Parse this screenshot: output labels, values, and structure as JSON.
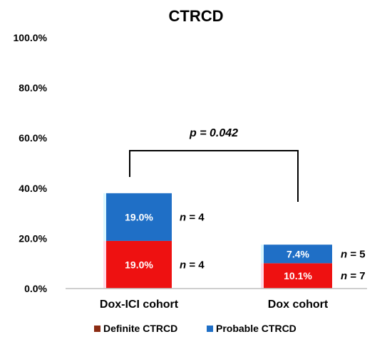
{
  "chart_data": {
    "type": "bar",
    "stacked": true,
    "title": "CTRCD",
    "categories": [
      "Dox-ICI cohort",
      "Dox cohort"
    ],
    "ylim": [
      0,
      100
    ],
    "yticks": [
      "0.0%",
      "20.0%",
      "40.0%",
      "60.0%",
      "80.0%",
      "100.0%"
    ],
    "grid": false,
    "legend_position": "bottom",
    "series": [
      {
        "name": "Definite CTRCD",
        "color": "#ee1111",
        "values": [
          19.0,
          10.1
        ],
        "labels": [
          "19.0%",
          "10.1%"
        ],
        "n_labels": [
          {
            "prefix": "n",
            "text": " = 4"
          },
          {
            "prefix": "n",
            "text": " = 7"
          }
        ]
      },
      {
        "name": "Probable CTRCD",
        "color": "#1f6fc6",
        "values": [
          19.0,
          7.4
        ],
        "labels": [
          "19.0%",
          "7.4%"
        ],
        "n_labels": [
          {
            "prefix": "n",
            "text": " = 4"
          },
          {
            "prefix": "n",
            "text": " = 5"
          }
        ]
      }
    ],
    "annotation": {
      "text": "p = 0.042"
    }
  }
}
